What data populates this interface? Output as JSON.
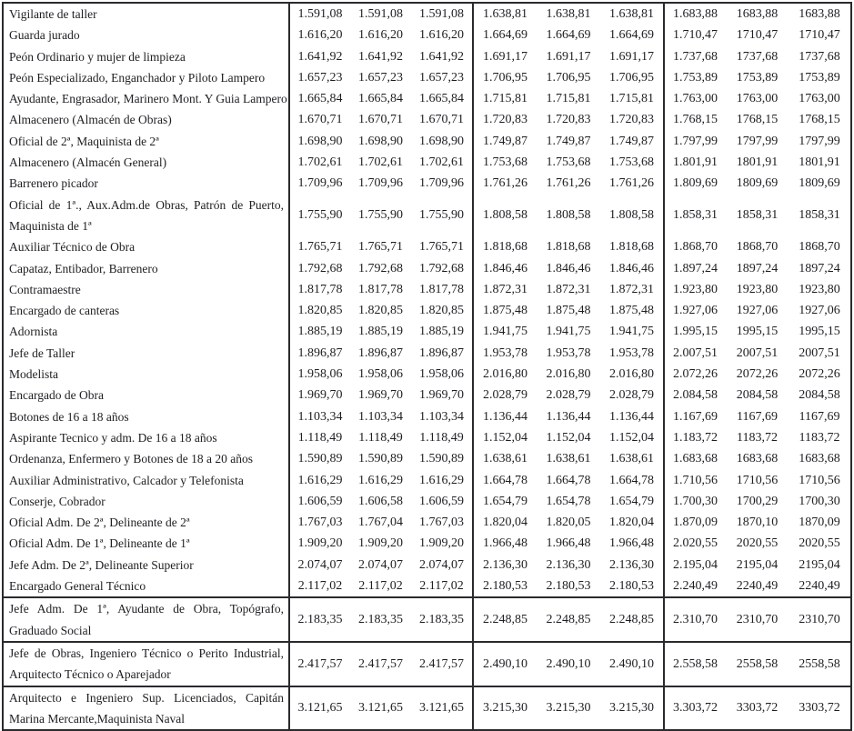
{
  "styles": {
    "text_color": "#1e1e22",
    "border_color": "#2a2a2e",
    "background": "#ffffff"
  },
  "table": {
    "column_groups": 3,
    "columns_per_group": 3,
    "rows": [
      {
        "label": "Vigilante de taller",
        "values": [
          "1.591,08",
          "1.591,08",
          "1.591,08",
          "1.638,81",
          "1.638,81",
          "1.638,81",
          "1.683,88",
          "1683,88",
          "1683,88"
        ]
      },
      {
        "label": "Guarda jurado",
        "values": [
          "1.616,20",
          "1.616,20",
          "1.616,20",
          "1.664,69",
          "1.664,69",
          "1.664,69",
          "1.710,47",
          "1710,47",
          "1710,47"
        ]
      },
      {
        "label": "Peón Ordinario y mujer de limpieza",
        "values": [
          "1.641,92",
          "1.641,92",
          "1.641,92",
          "1.691,17",
          "1.691,17",
          "1.691,17",
          "1.737,68",
          "1737,68",
          "1737,68"
        ]
      },
      {
        "label": "Peón Especializado, Enganchador y Piloto Lampero",
        "values": [
          "1.657,23",
          "1.657,23",
          "1.657,23",
          "1.706,95",
          "1.706,95",
          "1.706,95",
          "1.753,89",
          "1753,89",
          "1753,89"
        ]
      },
      {
        "label": "Ayudante, Engrasador, Marinero Mont. Y Guia Lampero",
        "values": [
          "1.665,84",
          "1.665,84",
          "1.665,84",
          "1.715,81",
          "1.715,81",
          "1.715,81",
          "1.763,00",
          "1763,00",
          "1763,00"
        ]
      },
      {
        "label": "Almacenero (Almacén de Obras)",
        "values": [
          "1.670,71",
          "1.670,71",
          "1.670,71",
          "1.720,83",
          "1.720,83",
          "1.720,83",
          "1.768,15",
          "1768,15",
          "1768,15"
        ]
      },
      {
        "label": "Oficial de 2ª, Maquinista de 2ª",
        "values": [
          "1.698,90",
          "1.698,90",
          "1.698,90",
          "1.749,87",
          "1.749,87",
          "1.749,87",
          "1.797,99",
          "1797,99",
          "1797,99"
        ]
      },
      {
        "label": "Almacenero (Almacén General)",
        "values": [
          "1.702,61",
          "1.702,61",
          "1.702,61",
          "1.753,68",
          "1.753,68",
          "1.753,68",
          "1.801,91",
          "1801,91",
          "1801,91"
        ]
      },
      {
        "label": "Barrenero picador",
        "values": [
          "1.709,96",
          "1.709,96",
          "1.709,96",
          "1.761,26",
          "1.761,26",
          "1.761,26",
          "1.809,69",
          "1809,69",
          "1809,69"
        ]
      },
      {
        "label": "Oficial de 1ª., Aux.Adm.de Obras, Patrón de Puerto, Maquinista de 1ª",
        "multiline": true,
        "values": [
          "1.755,90",
          "1.755,90",
          "1.755,90",
          "1.808,58",
          "1.808,58",
          "1.808,58",
          "1.858,31",
          "1858,31",
          "1858,31"
        ]
      },
      {
        "label": "Auxiliar Técnico de Obra",
        "values": [
          "1.765,71",
          "1.765,71",
          "1.765,71",
          "1.818,68",
          "1.818,68",
          "1.818,68",
          "1.868,70",
          "1868,70",
          "1868,70"
        ]
      },
      {
        "label": "Capataz, Entibador, Barrenero",
        "values": [
          "1.792,68",
          "1.792,68",
          "1.792,68",
          "1.846,46",
          "1.846,46",
          "1.846,46",
          "1.897,24",
          "1897,24",
          "1897,24"
        ]
      },
      {
        "label": "Contramaestre",
        "values": [
          "1.817,78",
          "1.817,78",
          "1.817,78",
          "1.872,31",
          "1.872,31",
          "1.872,31",
          "1.923,80",
          "1923,80",
          "1923,80"
        ]
      },
      {
        "label": "Encargado de canteras",
        "values": [
          "1.820,85",
          "1.820,85",
          "1.820,85",
          "1.875,48",
          "1.875,48",
          "1.875,48",
          "1.927,06",
          "1927,06",
          "1927,06"
        ]
      },
      {
        "label": "Adornista",
        "values": [
          "1.885,19",
          "1.885,19",
          "1.885,19",
          "1.941,75",
          "1.941,75",
          "1.941,75",
          "1.995,15",
          "1995,15",
          "1995,15"
        ]
      },
      {
        "label": "Jefe de Taller",
        "values": [
          "1.896,87",
          "1.896,87",
          "1.896,87",
          "1.953,78",
          "1.953,78",
          "1.953,78",
          "2.007,51",
          "2007,51",
          "2007,51"
        ]
      },
      {
        "label": "Modelista",
        "values": [
          "1.958,06",
          "1.958,06",
          "1.958,06",
          "2.016,80",
          "2.016,80",
          "2.016,80",
          "2.072,26",
          "2072,26",
          "2072,26"
        ]
      },
      {
        "label": "Encargado de Obra",
        "values": [
          "1.969,70",
          "1.969,70",
          "1.969,70",
          "2.028,79",
          "2.028,79",
          "2.028,79",
          "2.084,58",
          "2084,58",
          "2084,58"
        ]
      },
      {
        "label": "Botones de 16 a 18 años",
        "values": [
          "1.103,34",
          "1.103,34",
          "1.103,34",
          "1.136,44",
          "1.136,44",
          "1.136,44",
          "1.167,69",
          "1167,69",
          "1167,69"
        ]
      },
      {
        "label": "Aspirante Tecnico y adm. De 16 a 18 años",
        "values": [
          "1.118,49",
          "1.118,49",
          "1.118,49",
          "1.152,04",
          "1.152,04",
          "1.152,04",
          "1.183,72",
          "1183,72",
          "1183,72"
        ]
      },
      {
        "label": "Ordenanza, Enfermero y Botones de 18 a 20 años",
        "values": [
          "1.590,89",
          "1.590,89",
          "1.590,89",
          "1.638,61",
          "1.638,61",
          "1.638,61",
          "1.683,68",
          "1683,68",
          "1683,68"
        ]
      },
      {
        "label": "Auxiliar Administrativo, Calcador y Telefonista",
        "values": [
          "1.616,29",
          "1.616,29",
          "1.616,29",
          "1.664,78",
          "1.664,78",
          "1.664,78",
          "1.710,56",
          "1710,56",
          "1710,56"
        ]
      },
      {
        "label": "Conserje, Cobrador",
        "values": [
          "1.606,59",
          "1.606,58",
          "1.606,59",
          "1.654,79",
          "1.654,78",
          "1.654,79",
          "1.700,30",
          "1700,29",
          "1700,30"
        ]
      },
      {
        "label": "Oficial Adm. De 2ª, Delineante de 2ª",
        "values": [
          "1.767,03",
          "1.767,04",
          "1.767,03",
          "1.820,04",
          "1.820,05",
          "1.820,04",
          "1.870,09",
          "1870,10",
          "1870,09"
        ]
      },
      {
        "label": "Oficial Adm. De 1ª, Delineante de 1ª",
        "values": [
          "1.909,20",
          "1.909,20",
          "1.909,20",
          "1.966,48",
          "1.966,48",
          "1.966,48",
          "2.020,55",
          "2020,55",
          "2020,55"
        ]
      },
      {
        "label": "Jefe Adm. De 2ª, Delineante Superior",
        "values": [
          "2.074,07",
          "2.074,07",
          "2.074,07",
          "2.136,30",
          "2.136,30",
          "2.136,30",
          "2.195,04",
          "2195,04",
          "2195,04"
        ]
      },
      {
        "label": "Encargado General Técnico",
        "values": [
          "2.117,02",
          "2.117,02",
          "2.117,02",
          "2.180,53",
          "2.180,53",
          "2.180,53",
          "2.240,49",
          "2240,49",
          "2240,49"
        ]
      },
      {
        "label": "Jefe Adm. De 1ª, Ayudante de Obra, Topógrafo, Graduado Social",
        "multiline": true,
        "rule_above": true,
        "values": [
          "2.183,35",
          "2.183,35",
          "2.183,35",
          "2.248,85",
          "2.248,85",
          "2.248,85",
          "2.310,70",
          "2310,70",
          "2310,70"
        ]
      },
      {
        "label": "Jefe de Obras, Ingeniero Técnico o Perito Industrial, Arquitecto Técnico o Aparejador",
        "multiline": true,
        "rule_above": true,
        "values": [
          "2.417,57",
          "2.417,57",
          "2.417,57",
          "2.490,10",
          "2.490,10",
          "2.490,10",
          "2.558,58",
          "2558,58",
          "2558,58"
        ]
      },
      {
        "label": "Arquitecto e Ingeniero Sup. Licenciados, Capitán Marina Mercante,Maquinista Naval",
        "multiline": true,
        "rule_above": true,
        "values": [
          "3.121,65",
          "3.121,65",
          "3.121,65",
          "3.215,30",
          "3.215,30",
          "3.215,30",
          "3.303,72",
          "3303,72",
          "3303,72"
        ]
      }
    ]
  }
}
